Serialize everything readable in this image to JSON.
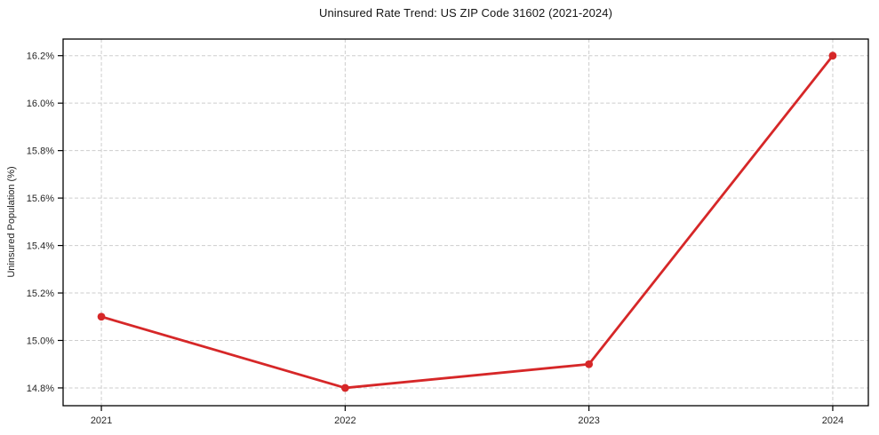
{
  "chart_data": {
    "type": "line",
    "title": "Uninsured Rate Trend: US ZIP Code 31602 (2021-2024)",
    "xlabel": "",
    "ylabel": "Uninsured Population (%)",
    "x": [
      2021,
      2022,
      2023,
      2024
    ],
    "values": [
      15.1,
      14.8,
      14.9,
      16.2
    ],
    "x_ticks": [
      {
        "value": 2021,
        "label": "2021"
      },
      {
        "value": 2022,
        "label": "2022"
      },
      {
        "value": 2023,
        "label": "2023"
      },
      {
        "value": 2024,
        "label": "2024"
      }
    ],
    "y_ticks": [
      {
        "value": 14.8,
        "label": "14.8%"
      },
      {
        "value": 15.0,
        "label": "15.0%"
      },
      {
        "value": 15.2,
        "label": "15.2%"
      },
      {
        "value": 15.4,
        "label": "15.4%"
      },
      {
        "value": 15.6,
        "label": "15.6%"
      },
      {
        "value": 15.8,
        "label": "15.8%"
      },
      {
        "value": 16.0,
        "label": "16.0%"
      },
      {
        "value": 16.2,
        "label": "16.2%"
      }
    ],
    "xlim": [
      2020.843,
      2024.146
    ],
    "ylim": [
      14.725,
      16.27
    ],
    "grid": true,
    "legend": "none",
    "marker": "circle",
    "colors": {
      "line": "#d62728",
      "marker": "#d62728",
      "grid": "#cdcdcd",
      "axis": "#000000",
      "tick_text": "#262626",
      "background": "#ffffff"
    }
  }
}
